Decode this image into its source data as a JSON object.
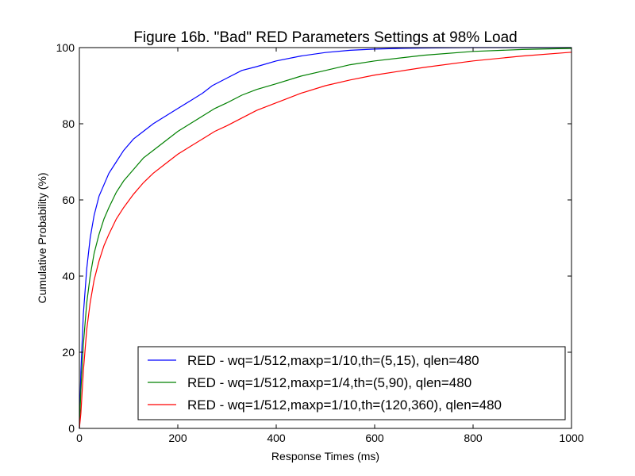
{
  "chart_data": {
    "type": "line",
    "title": "Figure 16b. \"Bad\" RED Parameters Settings at 98% Load",
    "xlabel": "Response Times (ms)",
    "ylabel": "Cumulative Probability (%)",
    "xlim": [
      0,
      1000
    ],
    "ylim": [
      0,
      100
    ],
    "xticks": [
      "0",
      "200",
      "400",
      "600",
      "800",
      "1000"
    ],
    "yticks": [
      "0",
      "20",
      "40",
      "60",
      "80",
      "100"
    ],
    "grid": false,
    "legend_position": "lower-right",
    "series": [
      {
        "name": "RED - wq=1/512,maxp=1/10,th=(5,15), qlen=480",
        "color": "#0000ff",
        "x": [
          0,
          3,
          8,
          15,
          22,
          30,
          40,
          50,
          60,
          75,
          90,
          110,
          130,
          150,
          175,
          200,
          225,
          250,
          270,
          300,
          330,
          360,
          400,
          450,
          500,
          550,
          600,
          650,
          700,
          800,
          1000
        ],
        "y": [
          0,
          15,
          30,
          42,
          50,
          56,
          61,
          64,
          67,
          70,
          73,
          76,
          78,
          80,
          82,
          84,
          86,
          88,
          90,
          92,
          94,
          95,
          96.5,
          97.8,
          98.7,
          99.3,
          99.6,
          99.8,
          99.9,
          100,
          100
        ]
      },
      {
        "name": "RED - wq=1/512,maxp=1/4,th=(5,90), qlen=480",
        "color": "#008000",
        "x": [
          0,
          3,
          8,
          15,
          22,
          30,
          40,
          50,
          60,
          75,
          90,
          110,
          130,
          150,
          175,
          200,
          225,
          250,
          275,
          300,
          330,
          360,
          400,
          450,
          500,
          550,
          600,
          700,
          800,
          900,
          1000
        ],
        "y": [
          0,
          10,
          22,
          33,
          40,
          46,
          51,
          55,
          58,
          62,
          65,
          68,
          71,
          73,
          75.5,
          78,
          80,
          82,
          84,
          85.5,
          87.5,
          89,
          90.5,
          92.5,
          94,
          95.5,
          96.5,
          98,
          99,
          99.5,
          99.8
        ]
      },
      {
        "name": "RED - wq=1/512,maxp=1/10,th=(120,360), qlen=480",
        "color": "#ff0000",
        "x": [
          0,
          3,
          8,
          15,
          22,
          30,
          40,
          50,
          60,
          75,
          90,
          110,
          130,
          150,
          175,
          200,
          225,
          250,
          275,
          300,
          330,
          360,
          400,
          450,
          500,
          550,
          600,
          650,
          700,
          800,
          900,
          1000
        ],
        "y": [
          0,
          4,
          15,
          26,
          33,
          39,
          44,
          48,
          51,
          55,
          58,
          61.5,
          64.5,
          67,
          69.5,
          72,
          74,
          76,
          78,
          79.5,
          81.5,
          83.5,
          85.5,
          88,
          90,
          91.5,
          92.8,
          93.8,
          94.8,
          96.5,
          97.8,
          98.8
        ]
      }
    ]
  }
}
